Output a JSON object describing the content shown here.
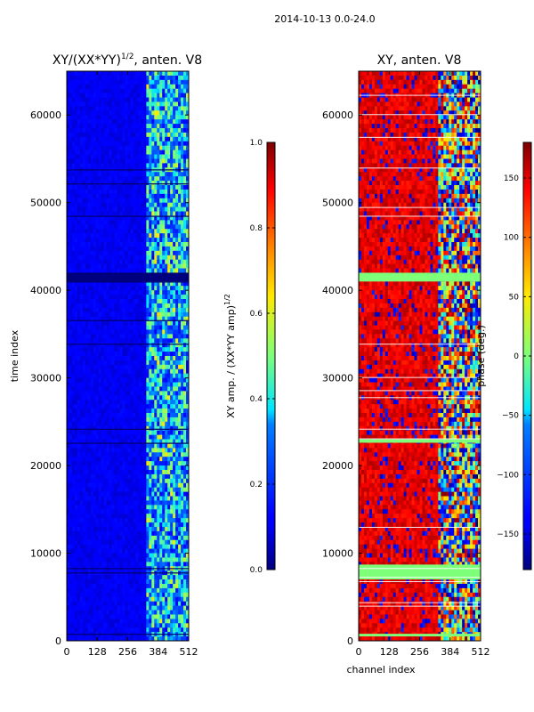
{
  "figure": {
    "suptitle": "2014-10-13 0.0-24.0"
  },
  "chart_data": [
    {
      "type": "heatmap",
      "title": "XY/(XX*YY)",
      "title_sup": "1/2",
      "title_suffix": ", anten. V8",
      "xlabel": "",
      "ylabel": "time index",
      "xlim": [
        0,
        512
      ],
      "ylim": [
        0,
        65000
      ],
      "xticks": [
        0,
        128,
        256,
        384,
        512
      ],
      "yticks": [
        0,
        10000,
        20000,
        30000,
        40000,
        50000,
        60000
      ],
      "colormap": "jet",
      "colorbar": {
        "label": "XY amp. / (XX*YY amp)",
        "label_sup": "1/2",
        "range": [
          0.0,
          1.0
        ],
        "ticks": [
          0.0,
          0.2,
          0.4,
          0.6,
          0.8,
          1.0
        ],
        "tick_labels": [
          "0.0",
          "0.2",
          "0.4",
          "0.6",
          "0.8",
          "1.0"
        ]
      },
      "flagged_bands": [
        {
          "from": 41000,
          "to": 42000
        }
      ],
      "dark_lines": [
        800,
        7800,
        8300,
        22600,
        24200,
        33900,
        36600,
        41000,
        42000,
        48500,
        52200,
        53800
      ],
      "high_value_channels": {
        "from": 330,
        "to": 512
      }
    },
    {
      "type": "heatmap",
      "title": "XY, anten. V8",
      "xlabel": "channel index",
      "ylabel": "",
      "xlim": [
        0,
        512
      ],
      "ylim": [
        0,
        65000
      ],
      "xticks": [
        0,
        128,
        256,
        384,
        512
      ],
      "yticks": [
        0,
        10000,
        20000,
        30000,
        40000,
        50000,
        60000
      ],
      "colormap": "jet",
      "colorbar": {
        "label": "phase (deg.)",
        "range": [
          -180,
          180
        ],
        "ticks": [
          -150,
          -100,
          -50,
          0,
          50,
          100,
          150
        ],
        "tick_labels": [
          "−150",
          "−100",
          "−50",
          "0",
          "50",
          "100",
          "150"
        ]
      },
      "flagged_bands": [
        {
          "from": 41000,
          "to": 42000
        },
        {
          "from": 22600,
          "to": 23000
        },
        {
          "from": 500,
          "to": 800
        },
        {
          "from": 7000,
          "to": 8700
        }
      ],
      "white_lines": [
        4000,
        4400,
        6800,
        7300,
        8300,
        13000,
        23100,
        24200,
        27800,
        28600,
        30100,
        33900,
        48500,
        49500,
        54000,
        57500,
        60100,
        62300
      ],
      "noisy_channels": {
        "from": 330,
        "to": 512
      }
    }
  ]
}
